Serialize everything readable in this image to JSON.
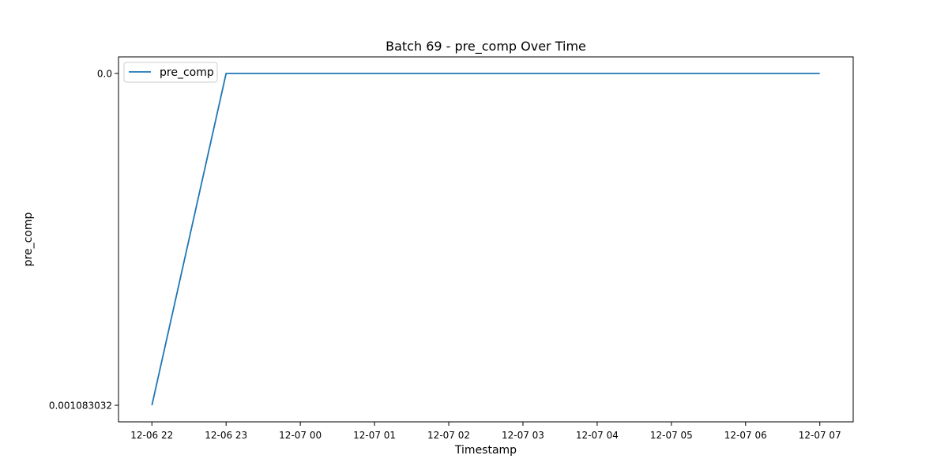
{
  "chart_data": {
    "type": "line",
    "title": "Batch 69 - pre_comp Over Time",
    "xlabel": "Timestamp",
    "ylabel": "pre_comp",
    "x_tick_labels": [
      "12-06 22",
      "12-06 23",
      "12-07 00",
      "12-07 01",
      "12-07 02",
      "12-07 03",
      "12-07 04",
      "12-07 05",
      "12-07 06",
      "12-07 07"
    ],
    "y_tick_labels": [
      "0.0",
      "0.001083032"
    ],
    "y_ticks": [
      0.0,
      0.001083032
    ],
    "ylim": [
      0.0,
      0.001083032
    ],
    "y_inverted": true,
    "x_axis_type": "time",
    "xlim": [
      "12-06 21:33",
      "12-07 07:27"
    ],
    "grid": false,
    "legend": {
      "location": "upper-left",
      "entries": [
        "pre_comp"
      ]
    },
    "series": [
      {
        "name": "pre_comp",
        "color": "#1f77b4",
        "points": [
          {
            "x": "12-06 22:00",
            "y": 0.001083032
          },
          {
            "x": "12-06 23:00",
            "y": 0.0
          },
          {
            "x": "12-07 00:00",
            "y": 0.0
          },
          {
            "x": "12-07 01:00",
            "y": 0.0
          },
          {
            "x": "12-07 02:00",
            "y": 0.0
          },
          {
            "x": "12-07 03:00",
            "y": 0.0
          },
          {
            "x": "12-07 04:00",
            "y": 0.0
          },
          {
            "x": "12-07 05:00",
            "y": 0.0
          },
          {
            "x": "12-07 06:00",
            "y": 0.0
          },
          {
            "x": "12-07 07:00",
            "y": 0.0
          }
        ]
      }
    ]
  }
}
